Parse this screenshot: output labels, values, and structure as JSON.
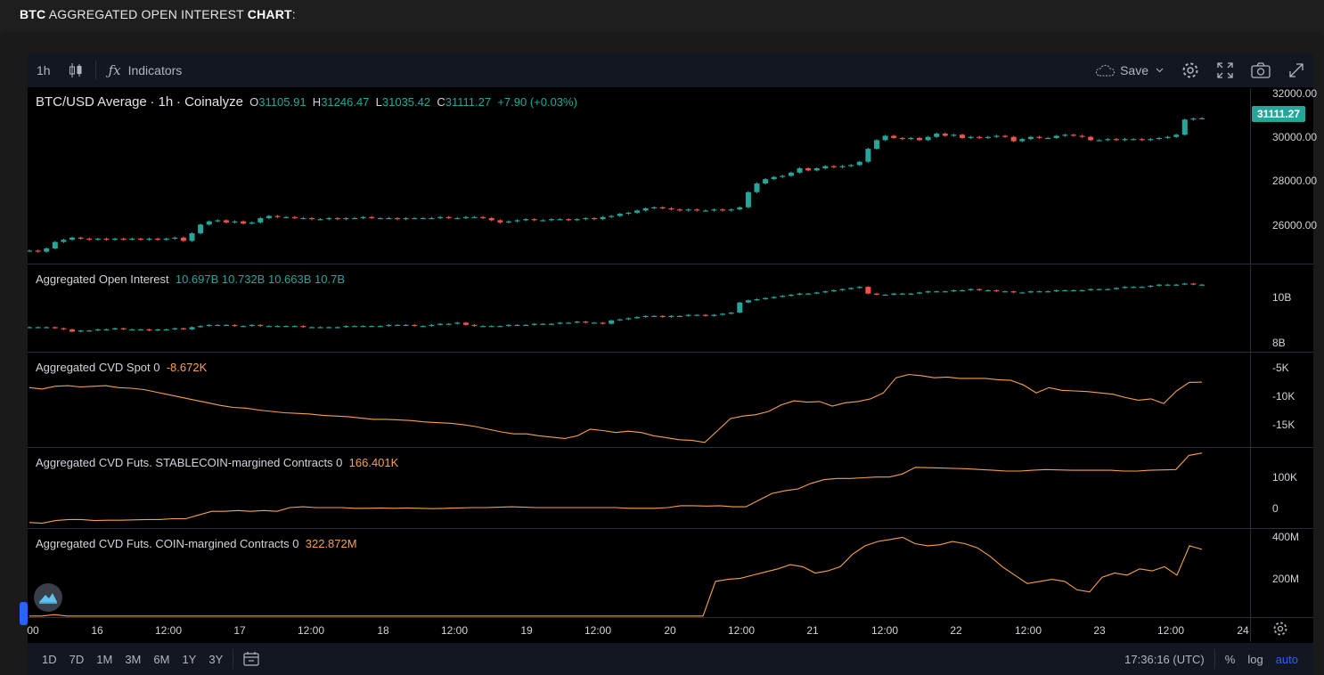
{
  "heading": {
    "prefix": "BTC",
    "middle": " AGGREGATED OPEN INTEREST ",
    "suffix": "CHART",
    "colon": ":"
  },
  "toolbar": {
    "interval": "1h",
    "chart_type_icon": "candles-icon",
    "indicators_label": "Indicators",
    "save_label": "Save"
  },
  "main_pane": {
    "symbol": "BTC/USD Average",
    "interval": "1h",
    "source": "Coinalyze",
    "o_label": "O",
    "o_value": "31105.91",
    "h_label": "H",
    "h_value": "31246.47",
    "l_label": "L",
    "l_value": "31035.42",
    "c_label": "C",
    "c_value": "31111.27",
    "change": "+7.90 (+0.03%)",
    "price_tag": "31111.27",
    "ticks": [
      "32000.00",
      "30000.00",
      "28000.00",
      "26000.00"
    ]
  },
  "oi_pane": {
    "title": "Aggregated Open Interest",
    "values": [
      "10.697B",
      "10.732B",
      "10.663B",
      "10.7B"
    ],
    "ticks": [
      "10B",
      "8B"
    ]
  },
  "cvd_spot_pane": {
    "title": "Aggregated CVD Spot 0",
    "value": "-8.672K",
    "ticks": [
      "-5K",
      "-10K",
      "-15K"
    ]
  },
  "cvd_stable_pane": {
    "title": "Aggregated CVD Futs. STABLECOIN-margined Contracts 0",
    "value": "166.401K",
    "ticks": [
      "100K",
      "0"
    ]
  },
  "cvd_coin_pane": {
    "title": "Aggregated CVD Futs. COIN-margined Contracts 0",
    "value": "322.872M",
    "ticks": [
      "400M",
      "200M"
    ]
  },
  "time_axis": [
    "00",
    "16",
    "12:00",
    "17",
    "12:00",
    "18",
    "12:00",
    "19",
    "12:00",
    "20",
    "12:00",
    "21",
    "12:00",
    "22",
    "12:00",
    "23",
    "12:00",
    "24"
  ],
  "bottom_bar": {
    "ranges": [
      "1D",
      "7D",
      "1M",
      "3M",
      "6M",
      "1Y",
      "3Y"
    ],
    "clock": "17:36:16 (UTC)",
    "percent": "%",
    "log": "log",
    "auto": "auto"
  },
  "colors": {
    "up": "#26a69a",
    "down": "#ef5350",
    "line": "#f7a24a",
    "accent": "#2962ff"
  },
  "chart_data": [
    {
      "type": "candlestick",
      "title": "BTC/USD Average · 1h · Coinalyze",
      "ylim": [
        24400,
        32500
      ],
      "close": [
        25000,
        24950,
        25100,
        25400,
        25500,
        25600,
        25550,
        25500,
        25550,
        25500,
        25550,
        25520,
        25550,
        25500,
        25550,
        25500,
        25550,
        25600,
        25450,
        25800,
        26200,
        26350,
        26400,
        26300,
        26350,
        26250,
        26300,
        26500,
        26600,
        26550,
        26550,
        26500,
        26500,
        26450,
        26450,
        26500,
        26450,
        26500,
        26500,
        26550,
        26500,
        26500,
        26500,
        26450,
        26500,
        26500,
        26500,
        26500,
        26550,
        26500,
        26500,
        26550,
        26550,
        26500,
        26400,
        26300,
        26350,
        26400,
        26450,
        26400,
        26400,
        26450,
        26450,
        26400,
        26450,
        26500,
        26450,
        26550,
        26600,
        26700,
        26750,
        26850,
        26950,
        27000,
        26950,
        26900,
        26850,
        26900,
        26850,
        26850,
        26900,
        26850,
        26900,
        27000,
        27700,
        28100,
        28300,
        28400,
        28450,
        28600,
        28800,
        28700,
        28800,
        28900,
        28850,
        28900,
        28950,
        29100,
        29700,
        30100,
        30300,
        30200,
        30150,
        30200,
        30100,
        30250,
        30400,
        30300,
        30350,
        30200,
        30250,
        30200,
        30250,
        30300,
        30250,
        30050,
        30150,
        30250,
        30200,
        30200,
        30300,
        30350,
        30300,
        30250,
        30100,
        30100,
        30150,
        30100,
        30150,
        30150,
        30100,
        30150,
        30200,
        30250,
        30350,
        31050,
        31100,
        31111
      ]
    },
    {
      "type": "candlestick",
      "title": "Aggregated Open Interest",
      "ylim": [
        7.7,
        11.6
      ],
      "close": [
        8.8,
        8.8,
        8.8,
        8.75,
        8.7,
        8.6,
        8.65,
        8.65,
        8.7,
        8.7,
        8.75,
        8.7,
        8.7,
        8.7,
        8.65,
        8.7,
        8.7,
        8.75,
        8.7,
        8.8,
        8.85,
        8.9,
        8.9,
        8.9,
        8.85,
        8.85,
        8.9,
        8.85,
        8.85,
        8.85,
        8.85,
        8.85,
        8.8,
        8.8,
        8.8,
        8.8,
        8.8,
        8.85,
        8.85,
        8.85,
        8.85,
        8.85,
        8.9,
        8.9,
        8.9,
        8.85,
        8.85,
        8.9,
        8.95,
        8.95,
        9.0,
        8.9,
        8.85,
        8.85,
        8.85,
        8.85,
        8.9,
        8.9,
        8.9,
        8.95,
        8.95,
        8.95,
        9.0,
        9.0,
        9.05,
        9.0,
        9.0,
        8.95,
        9.1,
        9.15,
        9.2,
        9.25,
        9.3,
        9.3,
        9.25,
        9.3,
        9.3,
        9.35,
        9.35,
        9.3,
        9.35,
        9.4,
        9.45,
        9.9,
        10.0,
        10.05,
        10.1,
        10.15,
        10.2,
        10.25,
        10.3,
        10.3,
        10.35,
        10.4,
        10.45,
        10.5,
        10.55,
        10.6,
        10.3,
        10.25,
        10.25,
        10.3,
        10.3,
        10.3,
        10.35,
        10.4,
        10.4,
        10.4,
        10.45,
        10.45,
        10.5,
        10.45,
        10.45,
        10.4,
        10.4,
        10.35,
        10.35,
        10.4,
        10.4,
        10.4,
        10.45,
        10.45,
        10.45,
        10.45,
        10.5,
        10.5,
        10.5,
        10.55,
        10.6,
        10.6,
        10.6,
        10.65,
        10.7,
        10.7,
        10.7,
        10.75,
        10.7,
        10.7
      ]
    },
    {
      "type": "line",
      "title": "Aggregated CVD Spot 0",
      "ylim": [
        -18500,
        -4200
      ],
      "values": [
        -9500,
        -9700,
        -9300,
        -9200,
        -9400,
        -9300,
        -9200,
        -9500,
        -9600,
        -9800,
        -10200,
        -10600,
        -11000,
        -11400,
        -11800,
        -12200,
        -12500,
        -12600,
        -12900,
        -13100,
        -13300,
        -13400,
        -13500,
        -13700,
        -13800,
        -13900,
        -14100,
        -14300,
        -14300,
        -14400,
        -14500,
        -14700,
        -14800,
        -14900,
        -15100,
        -15400,
        -15800,
        -16200,
        -16500,
        -16500,
        -16800,
        -17000,
        -17200,
        -16800,
        -15800,
        -16000,
        -16300,
        -16100,
        -16300,
        -16800,
        -17100,
        -17400,
        -17500,
        -17800,
        -16000,
        -14200,
        -13800,
        -13600,
        -13100,
        -12100,
        -11500,
        -11700,
        -11600,
        -12300,
        -11800,
        -11600,
        -11200,
        -10300,
        -8000,
        -7500,
        -7700,
        -8000,
        -7900,
        -8100,
        -8100,
        -8100,
        -8300,
        -8400,
        -9100,
        -10300,
        -9500,
        -9900,
        -10000,
        -10100,
        -10300,
        -10500,
        -11000,
        -11400,
        -11200,
        -11900,
        -10000,
        -8700,
        -8672
      ]
    },
    {
      "type": "line",
      "title": "Aggregated CVD Futs. STABLECOIN-margined Contracts 0",
      "ylim": [
        -35000,
        180000
      ],
      "values": [
        -20000,
        -22000,
        -15000,
        -12000,
        -12000,
        -15000,
        -14000,
        -14000,
        -13000,
        -12000,
        -12000,
        -10000,
        -10000,
        0,
        10000,
        10000,
        12000,
        10000,
        12000,
        10000,
        20000,
        22000,
        20000,
        20000,
        20000,
        18000,
        18000,
        19000,
        18000,
        19000,
        18000,
        17000,
        18000,
        19000,
        20000,
        20000,
        21000,
        22000,
        21000,
        20000,
        20000,
        20000,
        20000,
        20000,
        20000,
        20000,
        18000,
        18000,
        18000,
        20000,
        25000,
        25000,
        24000,
        25000,
        22000,
        22000,
        40000,
        58000,
        65000,
        70000,
        85000,
        95000,
        98000,
        98000,
        100000,
        102000,
        102000,
        110000,
        128000,
        127000,
        126000,
        125000,
        124000,
        122000,
        120000,
        118000,
        118000,
        120000,
        122000,
        121000,
        120000,
        120000,
        120000,
        120000,
        118000,
        118000,
        120000,
        121000,
        122000,
        160000,
        166401
      ]
    },
    {
      "type": "line",
      "title": "Aggregated CVD Futs. COIN-margined Contracts 0",
      "ylim": [
        0,
        420000000
      ],
      "values": [
        5000000,
        5000000,
        12000000,
        5000000,
        5000000,
        5000000,
        5000000,
        5000000,
        5000000,
        5000000,
        5000000,
        5000000,
        5000000,
        5000000,
        5000000,
        5000000,
        5000000,
        5000000,
        5000000,
        5000000,
        5000000,
        5000000,
        5000000,
        5000000,
        5000000,
        5000000,
        5000000,
        5000000,
        5000000,
        5000000,
        5000000,
        5000000,
        5000000,
        5000000,
        5000000,
        5000000,
        5000000,
        5000000,
        5000000,
        5000000,
        5000000,
        5000000,
        5000000,
        5000000,
        5000000,
        5000000,
        5000000,
        5000000,
        5000000,
        5000000,
        5000000,
        5000000,
        5000000,
        5000000,
        5000000,
        170000000,
        180000000,
        185000000,
        200000000,
        215000000,
        230000000,
        250000000,
        240000000,
        210000000,
        220000000,
        240000000,
        300000000,
        340000000,
        360000000,
        370000000,
        380000000,
        350000000,
        340000000,
        345000000,
        360000000,
        350000000,
        330000000,
        290000000,
        240000000,
        200000000,
        160000000,
        170000000,
        180000000,
        170000000,
        130000000,
        120000000,
        190000000,
        210000000,
        200000000,
        230000000,
        220000000,
        240000000,
        200000000,
        340000000,
        322872000
      ]
    }
  ]
}
